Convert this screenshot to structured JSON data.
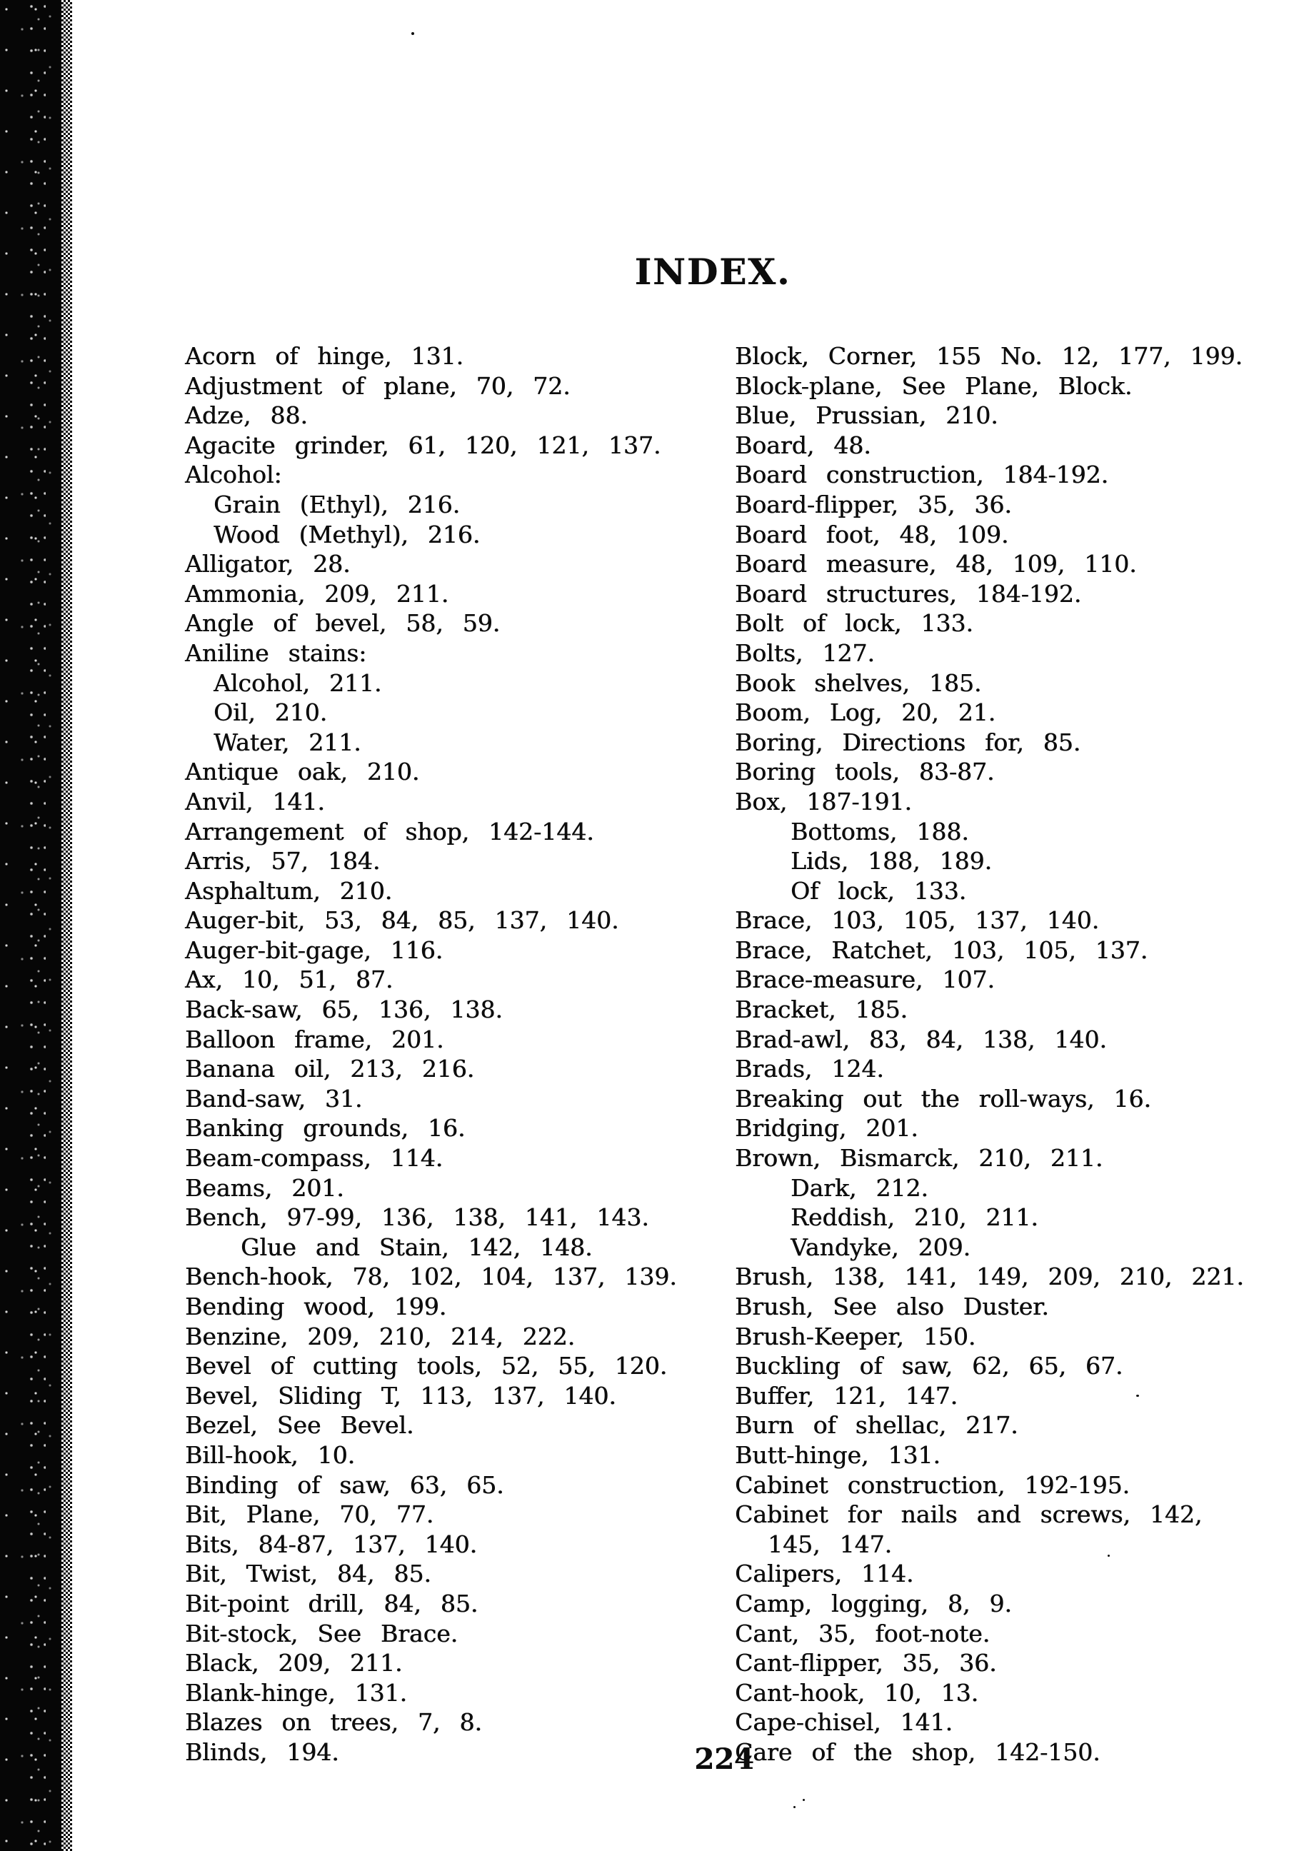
{
  "page": {
    "title": "INDEX.",
    "page_number": "224",
    "ink_color": "#0d0d0d",
    "paper_color": "#ffffff",
    "binding_color": "#060606"
  },
  "columns": {
    "left": [
      {
        "text": "Acorn of hinge, 131.",
        "indent": 0
      },
      {
        "text": "Adjustment of plane, 70, 72.",
        "indent": 0
      },
      {
        "text": "Adze, 88.",
        "indent": 0
      },
      {
        "text": "Agacite grinder, 61, 120, 121, 137.",
        "indent": 0
      },
      {
        "text": "Alcohol:",
        "indent": 0
      },
      {
        "text": "Grain (Ethyl), 216.",
        "indent": 1
      },
      {
        "text": "Wood (Methyl), 216.",
        "indent": 1
      },
      {
        "text": "Alligator, 28.",
        "indent": 0
      },
      {
        "text": "Ammonia, 209, 211.",
        "indent": 0
      },
      {
        "text": "Angle of bevel, 58, 59.",
        "indent": 0
      },
      {
        "text": "Aniline stains:",
        "indent": 0
      },
      {
        "text": "Alcohol, 211.",
        "indent": 1
      },
      {
        "text": "Oil, 210.",
        "indent": 1
      },
      {
        "text": "Water, 211.",
        "indent": 1
      },
      {
        "text": "Antique oak, 210.",
        "indent": 0
      },
      {
        "text": "Anvil, 141.",
        "indent": 0
      },
      {
        "text": "Arrangement of shop, 142-144.",
        "indent": 0
      },
      {
        "text": "Arris, 57, 184.",
        "indent": 0
      },
      {
        "text": "Asphaltum, 210.",
        "indent": 0
      },
      {
        "text": "Auger-bit, 53, 84, 85, 137, 140.",
        "indent": 0
      },
      {
        "text": "Auger-bit-gage, 116.",
        "indent": 0
      },
      {
        "text": "Ax, 10, 51, 87.",
        "indent": 0
      },
      {
        "text": "Back-saw, 65, 136, 138.",
        "indent": 0
      },
      {
        "text": "Balloon frame, 201.",
        "indent": 0
      },
      {
        "text": "Banana oil, 213, 216.",
        "indent": 0
      },
      {
        "text": "Band-saw, 31.",
        "indent": 0
      },
      {
        "text": "Banking grounds, 16.",
        "indent": 0
      },
      {
        "text": "Beam-compass, 114.",
        "indent": 0
      },
      {
        "text": "Beams, 201.",
        "indent": 0
      },
      {
        "text": "Bench, 97-99, 136, 138, 141, 143.",
        "indent": 0
      },
      {
        "text": "Glue and Stain, 142, 148.",
        "indent": 2
      },
      {
        "text": "Bench-hook, 78, 102, 104, 137, 139.",
        "indent": 0
      },
      {
        "text": "Bending wood, 199.",
        "indent": 0
      },
      {
        "text": "Benzine, 209, 210, 214, 222.",
        "indent": 0
      },
      {
        "text": "Bevel of cutting tools, 52, 55, 120.",
        "indent": 0
      },
      {
        "text": "Bevel, Sliding T, 113, 137, 140.",
        "indent": 0
      },
      {
        "text": "Bezel, See Bevel.",
        "indent": 0
      },
      {
        "text": "Bill-hook, 10.",
        "indent": 0
      },
      {
        "text": "Binding of saw, 63, 65.",
        "indent": 0
      },
      {
        "text": "Bit, Plane, 70, 77.",
        "indent": 0
      },
      {
        "text": "Bits, 84-87, 137, 140.",
        "indent": 0
      },
      {
        "text": "Bit, Twist, 84, 85.",
        "indent": 0
      },
      {
        "text": "Bit-point drill, 84, 85.",
        "indent": 0
      },
      {
        "text": "Bit-stock, See Brace.",
        "indent": 0
      },
      {
        "text": "Black, 209, 211.",
        "indent": 0
      },
      {
        "text": "Blank-hinge, 131.",
        "indent": 0
      },
      {
        "text": "Blazes on trees, 7, 8.",
        "indent": 0
      },
      {
        "text": "Blinds, 194.",
        "indent": 0
      }
    ],
    "right": [
      {
        "text": "Block, Corner, 155 No. 12, 177, 199.",
        "indent": 0
      },
      {
        "text": "Block-plane, See Plane, Block.",
        "indent": 0
      },
      {
        "text": "Blue, Prussian, 210.",
        "indent": 0
      },
      {
        "text": "Board, 48.",
        "indent": 0
      },
      {
        "text": "Board construction, 184-192.",
        "indent": 0
      },
      {
        "text": "Board-flipper, 35, 36.",
        "indent": 0
      },
      {
        "text": "Board foot, 48, 109.",
        "indent": 0
      },
      {
        "text": "Board measure, 48, 109, 110.",
        "indent": 0
      },
      {
        "text": "Board structures, 184-192.",
        "indent": 0
      },
      {
        "text": "Bolt of lock, 133.",
        "indent": 0
      },
      {
        "text": "Bolts, 127.",
        "indent": 0
      },
      {
        "text": "Book shelves, 185.",
        "indent": 0
      },
      {
        "text": "Boom, Log, 20, 21.",
        "indent": 0
      },
      {
        "text": "Boring, Directions for, 85.",
        "indent": 0
      },
      {
        "text": "Boring tools, 83-87.",
        "indent": 0
      },
      {
        "text": "Box, 187-191.",
        "indent": 0
      },
      {
        "text": "Bottoms, 188.",
        "indent": 2
      },
      {
        "text": "Lids, 188, 189.",
        "indent": 2
      },
      {
        "text": "Of lock, 133.",
        "indent": 2
      },
      {
        "text": "Brace, 103, 105, 137, 140.",
        "indent": 0
      },
      {
        "text": "Brace, Ratchet, 103, 105, 137.",
        "indent": 0
      },
      {
        "text": "Brace-measure, 107.",
        "indent": 0
      },
      {
        "text": "Bracket, 185.",
        "indent": 0
      },
      {
        "text": "Brad-awl, 83, 84, 138, 140.",
        "indent": 0
      },
      {
        "text": "Brads, 124.",
        "indent": 0
      },
      {
        "text": "Breaking out the roll-ways, 16.",
        "indent": 0
      },
      {
        "text": "Bridging, 201.",
        "indent": 0
      },
      {
        "text": "Brown, Bismarck, 210, 211.",
        "indent": 0
      },
      {
        "text": "Dark, 212.",
        "indent": 2
      },
      {
        "text": "Reddish, 210, 211.",
        "indent": 2
      },
      {
        "text": "Vandyke, 209.",
        "indent": 2
      },
      {
        "text": "Brush, 138, 141, 149, 209, 210, 221.",
        "indent": 0
      },
      {
        "text": "Brush, See also Duster.",
        "indent": 0
      },
      {
        "text": "Brush-Keeper, 150.",
        "indent": 0
      },
      {
        "text": "Buckling of saw, 62, 65, 67.",
        "indent": 0
      },
      {
        "text": "Buffer, 121, 147.",
        "indent": 0
      },
      {
        "text": "Burn of shellac, 217.",
        "indent": 0
      },
      {
        "text": "Butt-hinge, 131.",
        "indent": 0
      },
      {
        "text": "Cabinet construction, 192-195.",
        "indent": 0
      },
      {
        "text": "Cabinet for nails and screws, 142,",
        "indent": 0
      },
      {
        "text": "145, 147.",
        "indent": 3
      },
      {
        "text": "Calipers, 114.",
        "indent": 0
      },
      {
        "text": "Camp, logging, 8, 9.",
        "indent": 0
      },
      {
        "text": "Cant, 35, foot-note.",
        "indent": 0
      },
      {
        "text": "Cant-flipper, 35, 36.",
        "indent": 0
      },
      {
        "text": "Cant-hook, 10, 13.",
        "indent": 0
      },
      {
        "text": "Cape-chisel, 141.",
        "indent": 0
      },
      {
        "text": "Care of the shop, 142-150.",
        "indent": 0
      }
    ]
  }
}
